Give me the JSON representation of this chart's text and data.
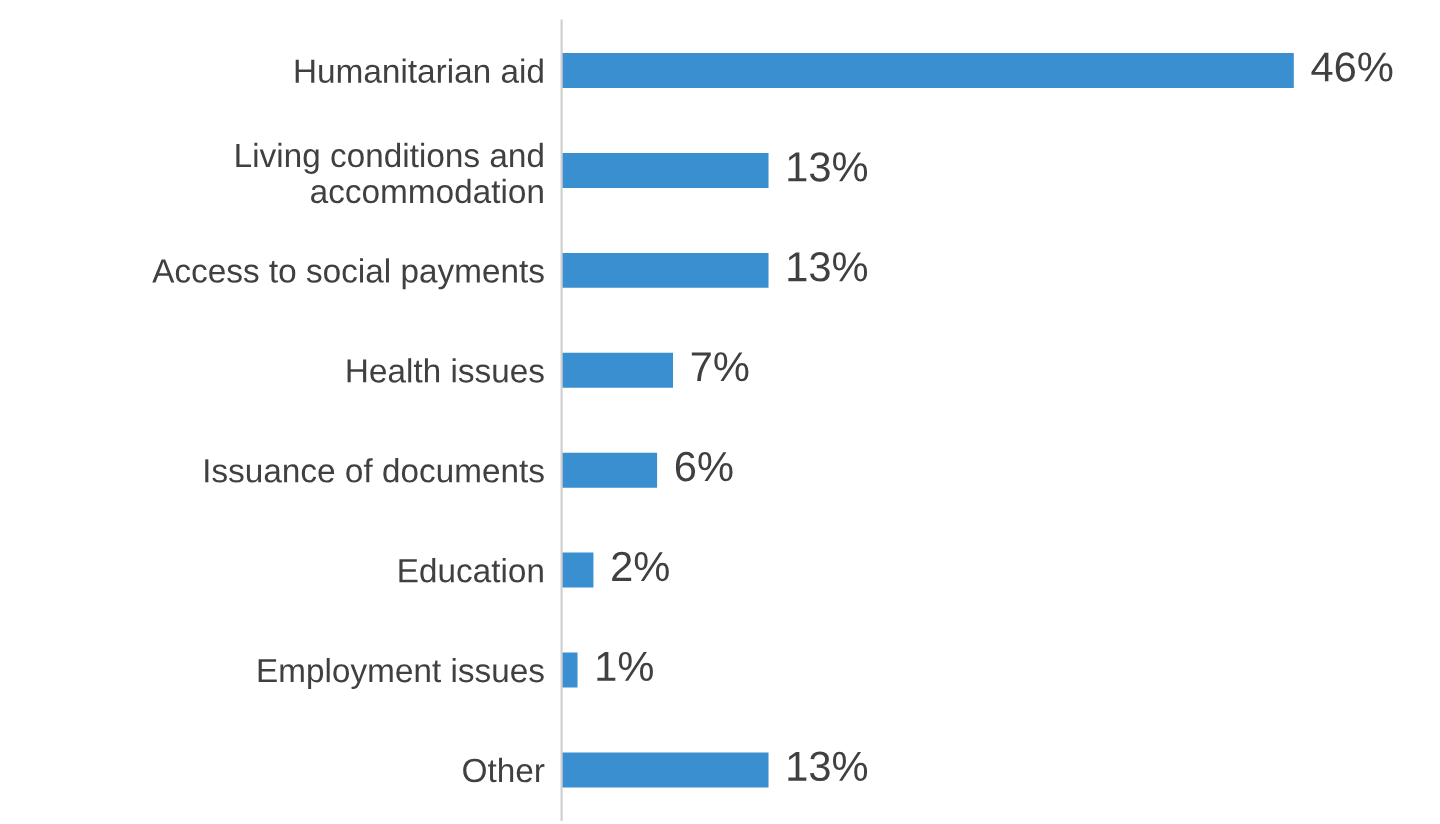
{
  "chart_data": {
    "type": "bar",
    "orientation": "horizontal",
    "categories": [
      "Humanitarian aid",
      "Living conditions and\naccommodation",
      "Access to social payments",
      "Health issues",
      "Issuance of documents",
      "Education",
      "Employment issues",
      "Other"
    ],
    "values": [
      46,
      13,
      13,
      7,
      6,
      2,
      1,
      13
    ],
    "value_labels": [
      "46%",
      "13%",
      "13%",
      "7%",
      "6%",
      "2%",
      "1%",
      "13%"
    ],
    "color": "#3a8fd0",
    "grid": false,
    "legend": false
  }
}
